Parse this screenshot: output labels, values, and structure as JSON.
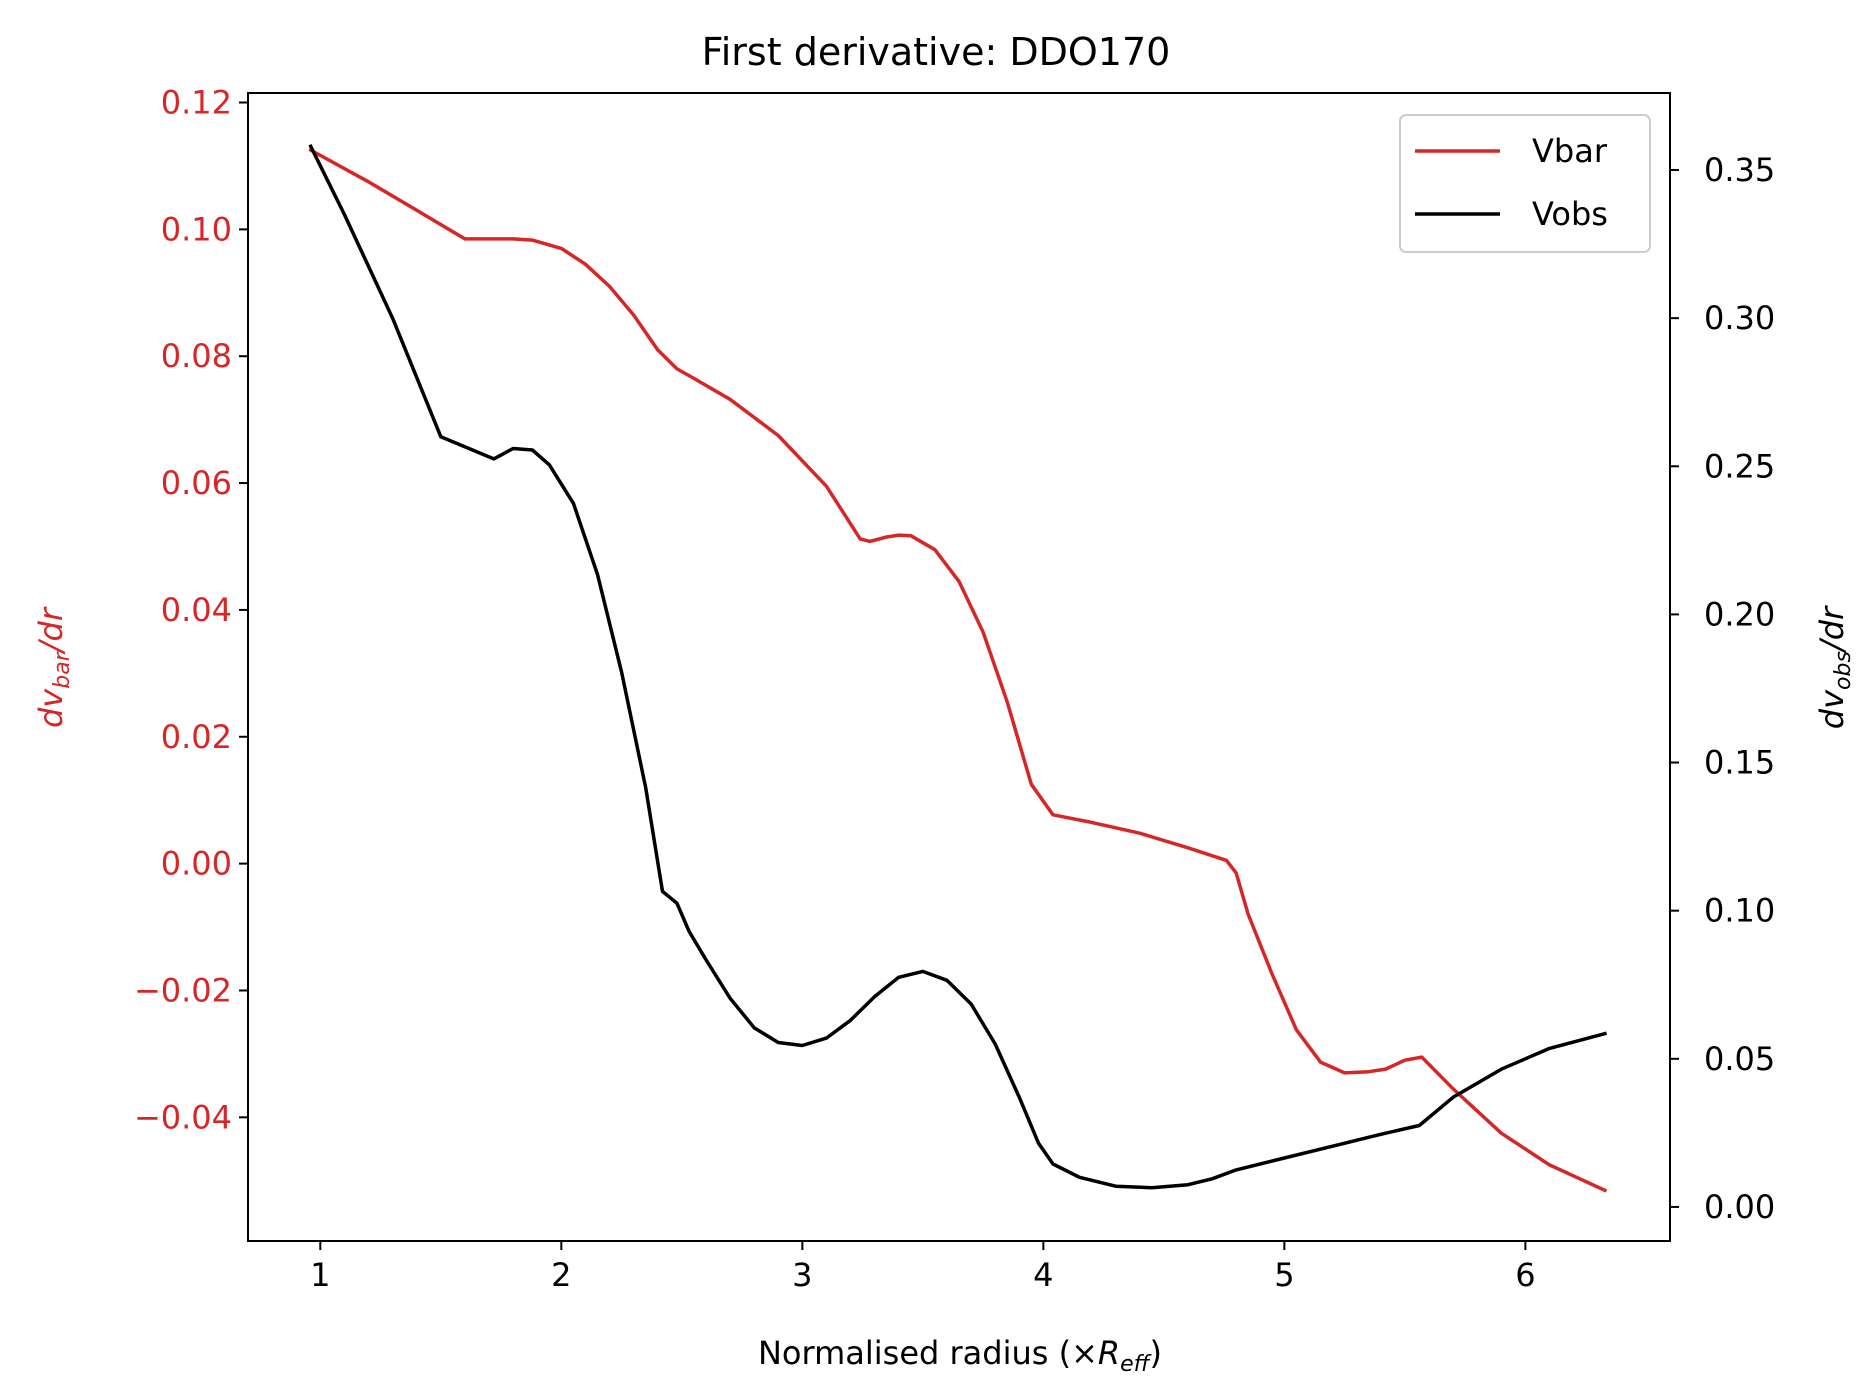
{
  "chart_data": {
    "type": "line",
    "title": "First derivative: DDO170",
    "xlabel": "Normalised radius (×R_eff)",
    "xlabel_main": "Normalised radius (×",
    "xlabel_sym": "R",
    "xlabel_sub": "eff",
    "xlabel_close": ")",
    "ylabel_left": "dv_bar/dr",
    "ylabel_left_main": "dv",
    "ylabel_left_sub": "bar",
    "ylabel_left_end": "/dr",
    "ylabel_right": "dv_obs/dr",
    "ylabel_right_main": "dv",
    "ylabel_right_sub": "obs",
    "ylabel_right_end": "/dr",
    "xlim": [
      0.7,
      6.6
    ],
    "ylim_left": [
      -0.0595,
      0.1215
    ],
    "ylim_right": [
      -0.0115,
      0.376
    ],
    "x_ticks": [
      1,
      2,
      3,
      4,
      5,
      6
    ],
    "x_tick_labels": [
      "1",
      "2",
      "3",
      "4",
      "5",
      "6"
    ],
    "y_left_ticks": [
      0.12,
      0.1,
      0.08,
      0.06,
      0.04,
      0.02,
      0.0,
      -0.02,
      -0.04
    ],
    "y_left_tick_labels": [
      "0.12",
      "0.10",
      "0.08",
      "0.06",
      "0.04",
      "0.02",
      "0.00",
      "−0.02",
      "−0.04"
    ],
    "y_right_ticks": [
      0.35,
      0.3,
      0.25,
      0.2,
      0.15,
      0.1,
      0.05,
      0.0
    ],
    "y_right_tick_labels": [
      "0.35",
      "0.30",
      "0.25",
      "0.20",
      "0.15",
      "0.10",
      "0.05",
      "0.00"
    ],
    "legend_position": "top-right",
    "grid": false,
    "series": [
      {
        "name": "Vbar",
        "axis": "left",
        "color": "#d62728",
        "x": [
          0.96,
          1.2,
          1.4,
          1.6,
          1.72,
          1.8,
          1.88,
          2.0,
          2.1,
          2.2,
          2.3,
          2.4,
          2.48,
          2.55,
          2.7,
          2.9,
          3.1,
          3.24,
          3.28,
          3.35,
          3.4,
          3.45,
          3.55,
          3.65,
          3.75,
          3.85,
          3.95,
          4.04,
          4.2,
          4.4,
          4.6,
          4.76,
          4.8,
          4.85,
          4.95,
          5.05,
          5.15,
          5.25,
          5.35,
          5.42,
          5.5,
          5.57,
          5.7,
          5.9,
          6.1,
          6.33
        ],
        "y": [
          0.1125,
          0.1075,
          0.103,
          0.0985,
          0.0985,
          0.0985,
          0.0983,
          0.097,
          0.0945,
          0.091,
          0.0865,
          0.081,
          0.078,
          0.0765,
          0.0732,
          0.0675,
          0.0595,
          0.0512,
          0.0508,
          0.0515,
          0.0518,
          0.0517,
          0.0495,
          0.0445,
          0.0365,
          0.0255,
          0.0125,
          0.0077,
          0.0065,
          0.0048,
          0.0025,
          0.0005,
          -0.0015,
          -0.008,
          -0.0175,
          -0.0262,
          -0.0313,
          -0.033,
          -0.0328,
          -0.0324,
          -0.031,
          -0.0305,
          -0.0355,
          -0.0425,
          -0.0475,
          -0.0515
        ]
      },
      {
        "name": "Vobs",
        "axis": "right",
        "color": "#000000",
        "x": [
          0.96,
          1.1,
          1.3,
          1.5,
          1.72,
          1.8,
          1.88,
          1.95,
          2.05,
          2.15,
          2.25,
          2.35,
          2.42,
          2.48,
          2.53,
          2.6,
          2.7,
          2.8,
          2.9,
          3.0,
          3.1,
          3.2,
          3.3,
          3.4,
          3.5,
          3.6,
          3.7,
          3.8,
          3.9,
          3.98,
          4.04,
          4.15,
          4.3,
          4.45,
          4.6,
          4.7,
          4.8,
          5.0,
          5.2,
          5.4,
          5.56,
          5.7,
          5.9,
          6.1,
          6.33
        ],
        "y": [
          0.358,
          0.335,
          0.3,
          0.26,
          0.2525,
          0.256,
          0.2555,
          0.2505,
          0.2375,
          0.2135,
          0.1805,
          0.1415,
          0.1065,
          0.1025,
          0.093,
          0.0835,
          0.0705,
          0.0605,
          0.0555,
          0.0545,
          0.057,
          0.063,
          0.071,
          0.0775,
          0.0795,
          0.0765,
          0.0685,
          0.055,
          0.037,
          0.0215,
          0.0145,
          0.01,
          0.007,
          0.0065,
          0.0075,
          0.0095,
          0.0125,
          0.0165,
          0.0205,
          0.0245,
          0.0275,
          0.037,
          0.0465,
          0.0535,
          0.0585
        ]
      }
    ]
  }
}
